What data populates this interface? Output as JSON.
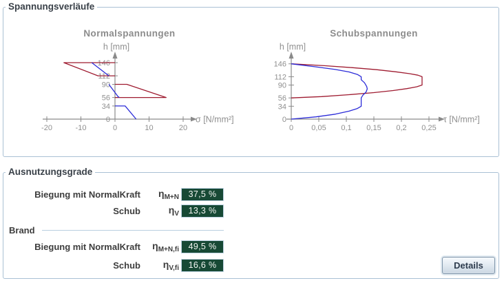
{
  "panels": {
    "spannungen": {
      "title": "Spannungsverläufe"
    },
    "ausnutzung": {
      "title": "Ausnutzungsgrade",
      "brand_label": "Brand"
    }
  },
  "chart_data": [
    {
      "type": "line",
      "title": "Normalspannungen",
      "xlabel": "σ [N/mm²]",
      "ylabel": "h [mm]",
      "xlim": [
        -20,
        20
      ],
      "ylim": [
        0,
        146
      ],
      "grid": false,
      "legend_position": "none",
      "xticks": [
        -20,
        -10,
        0,
        10,
        20
      ],
      "xtick_labels": [
        "-20",
        "-10",
        "0",
        "10",
        "20"
      ],
      "yticks": [
        0,
        34,
        56,
        90,
        112,
        146
      ],
      "ytick_labels": [
        "0",
        "34",
        "56",
        "90",
        "112",
        "146"
      ],
      "series": [
        {
          "name": "sigma-design",
          "color": "#9e1a2f",
          "segments": [
            [
              [
                0,
                146
              ],
              [
                -15,
                146
              ],
              [
                -5,
                112
              ],
              [
                0,
                112
              ]
            ],
            [
              [
                0,
                90
              ],
              [
                3.5,
                90
              ],
              [
                15,
                56
              ],
              [
                0,
                56
              ]
            ]
          ]
        },
        {
          "name": "sigma-second",
          "color": "#2a2ad8",
          "segments": [
            [
              [
                -6.8,
                146
              ],
              [
                -1.8,
                112
              ]
            ],
            [
              [
                -1.8,
                90
              ],
              [
                0.9,
                58
              ],
              [
                1.3,
                56
              ]
            ],
            [
              [
                0,
                34
              ],
              [
                3,
                34
              ],
              [
                6.2,
                0
              ]
            ]
          ]
        }
      ]
    },
    {
      "type": "line",
      "title": "Schubspannungen",
      "xlabel": "τ [N/mm²]",
      "ylabel": "h [mm]",
      "xlim": [
        0,
        0.25
      ],
      "ylim": [
        0,
        146
      ],
      "grid": false,
      "legend_position": "none",
      "xticks": [
        0,
        0.05,
        0.1,
        0.15,
        0.2,
        0.25
      ],
      "xtick_labels": [
        "0",
        "0,05",
        "0,1",
        "0,15",
        "0,2",
        "0,25"
      ],
      "yticks": [
        0,
        34,
        56,
        90,
        112,
        146
      ],
      "ytick_labels": [
        "0",
        "34",
        "56",
        "90",
        "112",
        "146"
      ],
      "series": [
        {
          "name": "tau-design",
          "color": "#9e1a2f",
          "segments": [
            [
              [
                0,
                146
              ],
              [
                0.06,
                141
              ],
              [
                0.11,
                136
              ],
              [
                0.155,
                130.5
              ],
              [
                0.19,
                125
              ],
              [
                0.215,
                120
              ],
              [
                0.23,
                116
              ],
              [
                0.2375,
                112
              ],
              [
                0.2375,
                90
              ],
              [
                0.228,
                85.5
              ],
              [
                0.21,
                80.5
              ],
              [
                0.185,
                75.5
              ],
              [
                0.15,
                70
              ],
              [
                0.105,
                64.5
              ],
              [
                0.055,
                59.5
              ],
              [
                0,
                56
              ]
            ]
          ]
        },
        {
          "name": "tau-second",
          "color": "#2a2ad8",
          "segments": [
            [
              [
                0,
                146
              ],
              [
                0.045,
                138
              ],
              [
                0.08,
                131
              ],
              [
                0.105,
                124.5
              ],
              [
                0.12,
                118
              ],
              [
                0.127,
                112
              ],
              [
                0.127,
                104
              ],
              [
                0.133,
                96
              ],
              [
                0.137,
                86
              ],
              [
                0.138,
                80
              ],
              [
                0.136,
                72
              ],
              [
                0.13,
                63
              ],
              [
                0.127,
                56
              ],
              [
                0.127,
                34
              ],
              [
                0.12,
                28
              ],
              [
                0.105,
                21
              ],
              [
                0.08,
                13
              ],
              [
                0.045,
                6
              ],
              [
                0,
                0
              ]
            ]
          ]
        }
      ]
    }
  ],
  "results": {
    "rows": [
      {
        "label": "Biegung mit NormalKraft",
        "symbol": "η",
        "sub": "M+N",
        "value": "37,5 %"
      },
      {
        "label": "Schub",
        "symbol": "η",
        "sub": "V",
        "value": "13,3 %"
      },
      {
        "label": "Biegung mit NormalKraft",
        "symbol": "η",
        "sub": "M+N,fi",
        "value": "49,5 %"
      },
      {
        "label": "Schub",
        "symbol": "η",
        "sub": "V,fi",
        "value": "16,6 %"
      }
    ]
  },
  "button": {
    "label": "Details"
  },
  "colors": {
    "panel_border": "#a9c0d4",
    "value_bg": "#174935",
    "curve_red": "#9e1a2f",
    "curve_blue": "#2a2ad8",
    "axis_gray": "#8a8a8a"
  }
}
